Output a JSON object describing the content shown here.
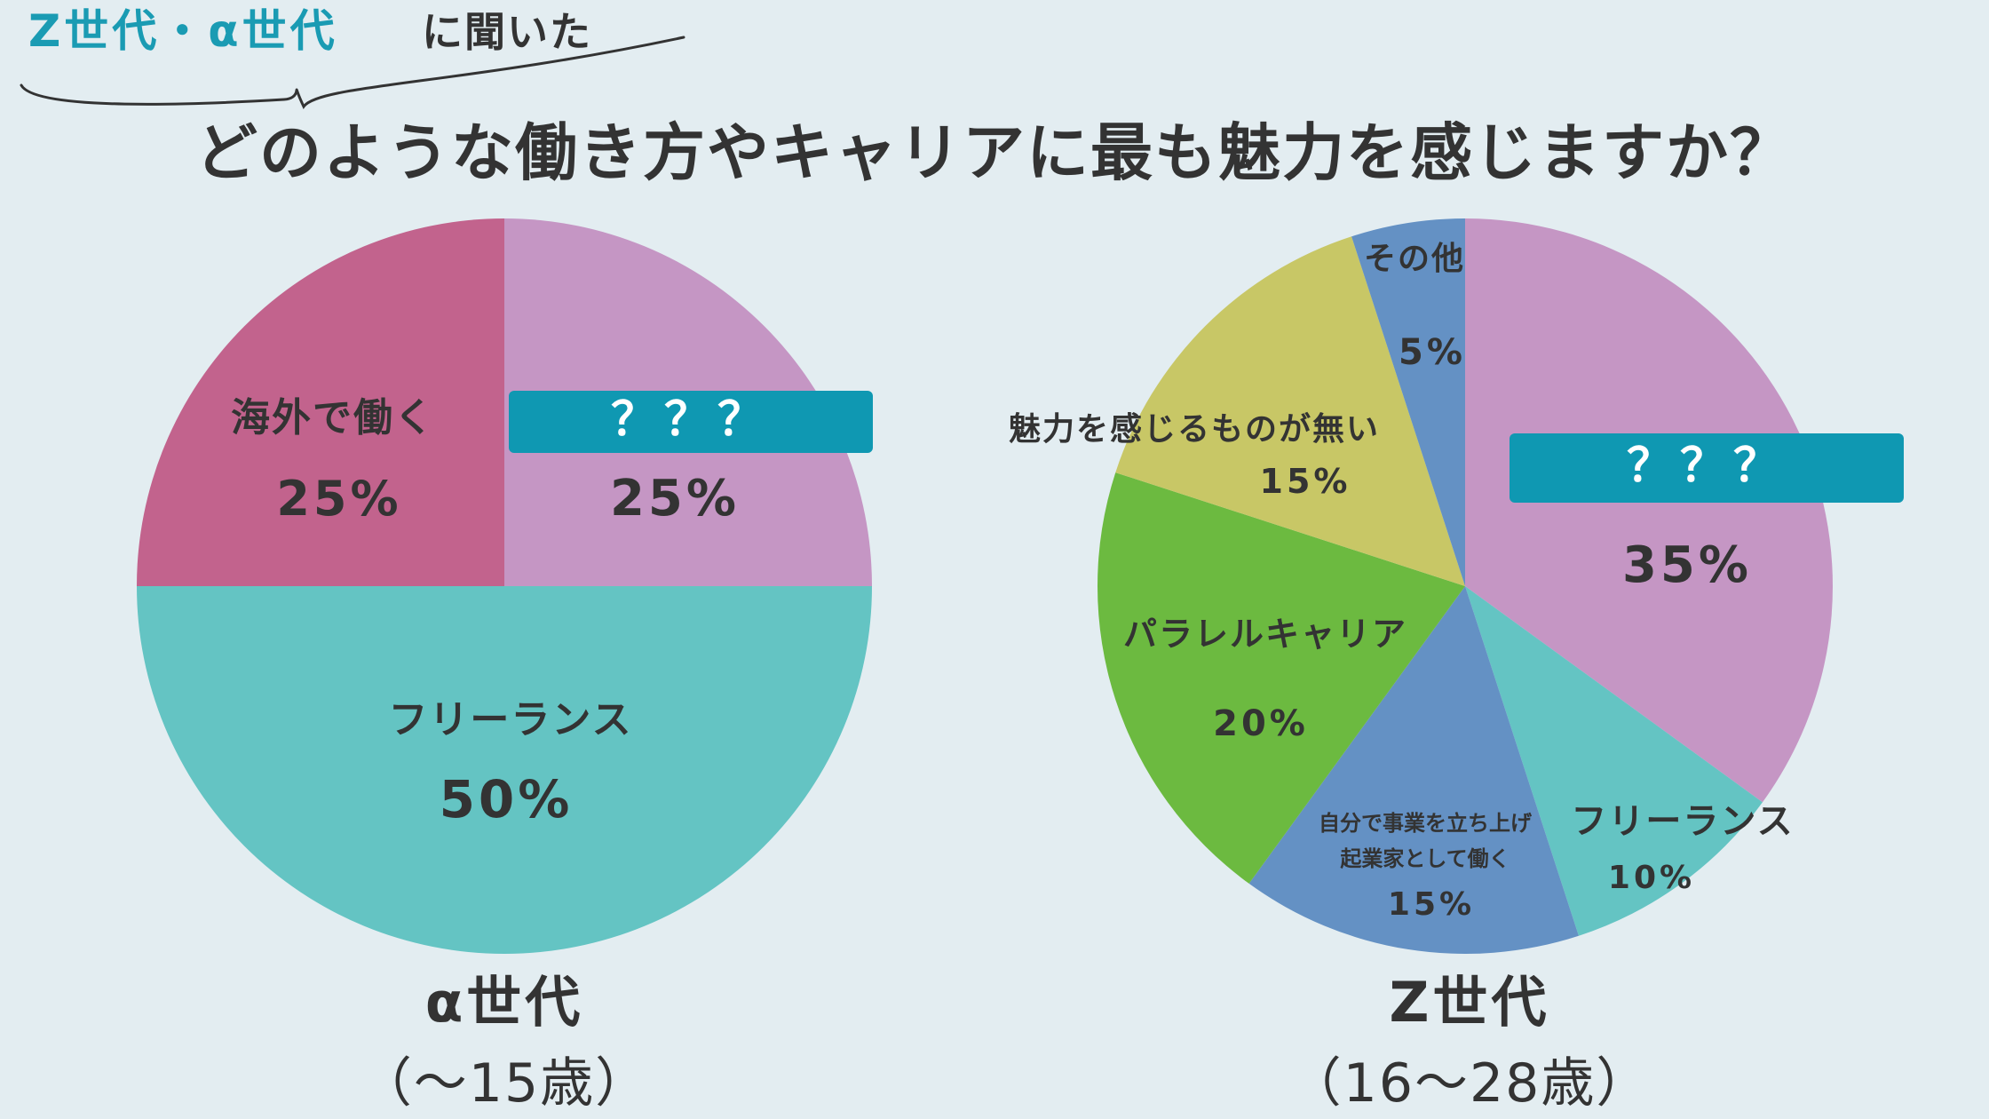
{
  "header": {
    "subtitle_highlight": "Z世代・α世代",
    "subtitle_rest": "に聞いた",
    "title": "どのような働き方やキャリアに最も魅力を感じますか？"
  },
  "colors": {
    "background": "#e3edf1",
    "accent_text": "#1a9bb3",
    "hidden_label_box": "#0f98b2",
    "pink": "#c2638d",
    "lavender": "#c596c4",
    "teal": "#64c4c3",
    "blue": "#6491c4",
    "green": "#6cba40",
    "olive": "#c8c766"
  },
  "chart_data": [
    {
      "type": "pie",
      "title": "α世代",
      "subtitle": "（〜15歳）",
      "slices": [
        {
          "label": "？？？",
          "value": 25,
          "display": "25%",
          "color": "#c596c4",
          "hidden_label": true
        },
        {
          "label": "フリーランス",
          "value": 50,
          "display": "50%",
          "color": "#64c4c3"
        },
        {
          "label": "海外で働く",
          "value": 25,
          "display": "25%",
          "color": "#c2638d"
        }
      ]
    },
    {
      "type": "pie",
      "title": "Z世代",
      "subtitle": "（16〜28歳）",
      "slices": [
        {
          "label": "？？？",
          "value": 35,
          "display": "35%",
          "color": "#c596c4",
          "hidden_label": true
        },
        {
          "label": "フリーランス",
          "value": 10,
          "display": "10%",
          "color": "#64c4c3"
        },
        {
          "label": "自分で事業を立ち上げ起業家として働く",
          "lines": [
            "自分で事業を立ち上げ",
            "起業家として働く"
          ],
          "value": 15,
          "display": "15%",
          "color": "#6491c4"
        },
        {
          "label": "パラレルキャリア",
          "value": 20,
          "display": "20%",
          "color": "#6cba40"
        },
        {
          "label": "魅力を感じるものが無い",
          "value": 15,
          "display": "15%",
          "color": "#c8c766"
        },
        {
          "label": "その他",
          "value": 5,
          "display": "5%",
          "color": "#6491c4"
        }
      ]
    }
  ]
}
